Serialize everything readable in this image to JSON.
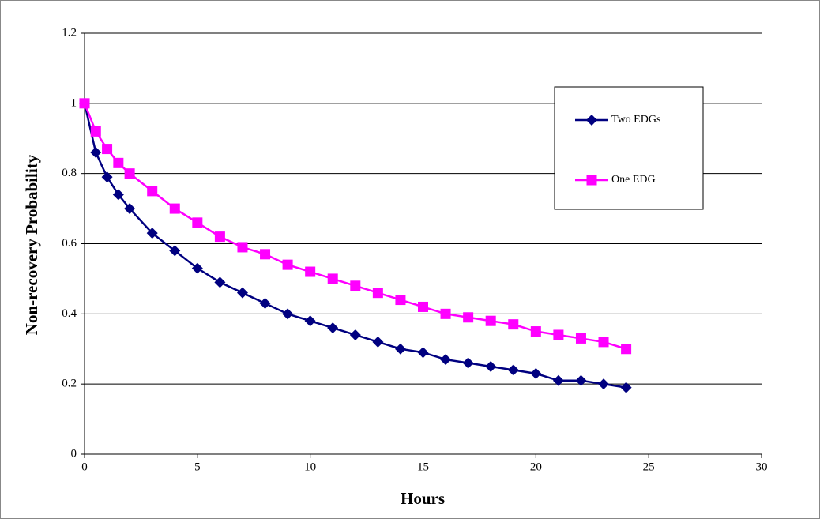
{
  "chart_data": {
    "type": "line",
    "x_label": "Hours",
    "y_label": "Non-recovery Probability",
    "x": [
      0,
      0.5,
      1,
      1.5,
      2,
      3,
      4,
      5,
      6,
      7,
      8,
      9,
      10,
      11,
      12,
      13,
      14,
      15,
      16,
      17,
      18,
      19,
      20,
      21,
      22,
      23,
      24
    ],
    "series": [
      {
        "name": "Two EDGs",
        "color": "#000080",
        "marker": "diamond",
        "values": [
          1.0,
          0.86,
          0.79,
          0.74,
          0.7,
          0.63,
          0.58,
          0.53,
          0.49,
          0.46,
          0.43,
          0.4,
          0.38,
          0.36,
          0.34,
          0.32,
          0.3,
          0.29,
          0.27,
          0.26,
          0.25,
          0.24,
          0.23,
          0.21,
          0.21,
          0.2,
          0.19
        ]
      },
      {
        "name": "One EDG",
        "color": "#ff00ff",
        "marker": "square",
        "values": [
          1.0,
          0.92,
          0.87,
          0.83,
          0.8,
          0.75,
          0.7,
          0.66,
          0.62,
          0.59,
          0.57,
          0.54,
          0.52,
          0.5,
          0.48,
          0.46,
          0.44,
          0.42,
          0.4,
          0.39,
          0.38,
          0.37,
          0.35,
          0.34,
          0.33,
          0.32,
          0.3
        ]
      }
    ],
    "xlim": [
      0,
      30
    ],
    "xticks": [
      0,
      5,
      10,
      15,
      20,
      25,
      30
    ],
    "ylim": [
      0,
      1.2
    ],
    "yticks": [
      0,
      0.2,
      0.4,
      0.6,
      0.8,
      1,
      1.2
    ],
    "grid": true,
    "legend_position": "top-right"
  }
}
